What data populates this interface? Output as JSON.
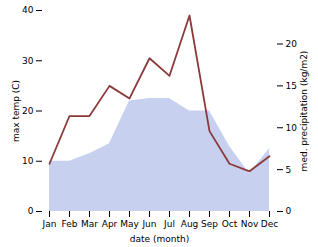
{
  "chart_data": {
    "type": "line",
    "categories": [
      "Jan",
      "Feb",
      "Mar",
      "Apr",
      "May",
      "Jun",
      "Jul",
      "Aug",
      "Sep",
      "Oct",
      "Nov",
      "Dec"
    ],
    "series": [
      {
        "type": "area",
        "color": "#c8d0f0",
        "values": [
          10.0,
          10.0,
          11.5,
          13.5,
          22.0,
          22.5,
          22.5,
          20.0,
          20.0,
          13.0,
          7.5,
          12.5
        ]
      },
      {
        "type": "line",
        "color": "#8B3A3A",
        "values": [
          9.5,
          19.0,
          19.0,
          25.0,
          22.5,
          30.5,
          27.0,
          39.0,
          16.0,
          9.5,
          8.0,
          11.0
        ]
      }
    ],
    "xlabel": "date (month)",
    "ylabel": "max temp (C)",
    "y2label": "med. precipitation (kg/m2)",
    "ylim": [
      0,
      40
    ],
    "yticks": [
      0,
      10,
      20,
      30,
      40
    ],
    "y2lim": [
      0,
      24
    ],
    "y2ticks": [
      0,
      5,
      10,
      15,
      20
    ]
  }
}
